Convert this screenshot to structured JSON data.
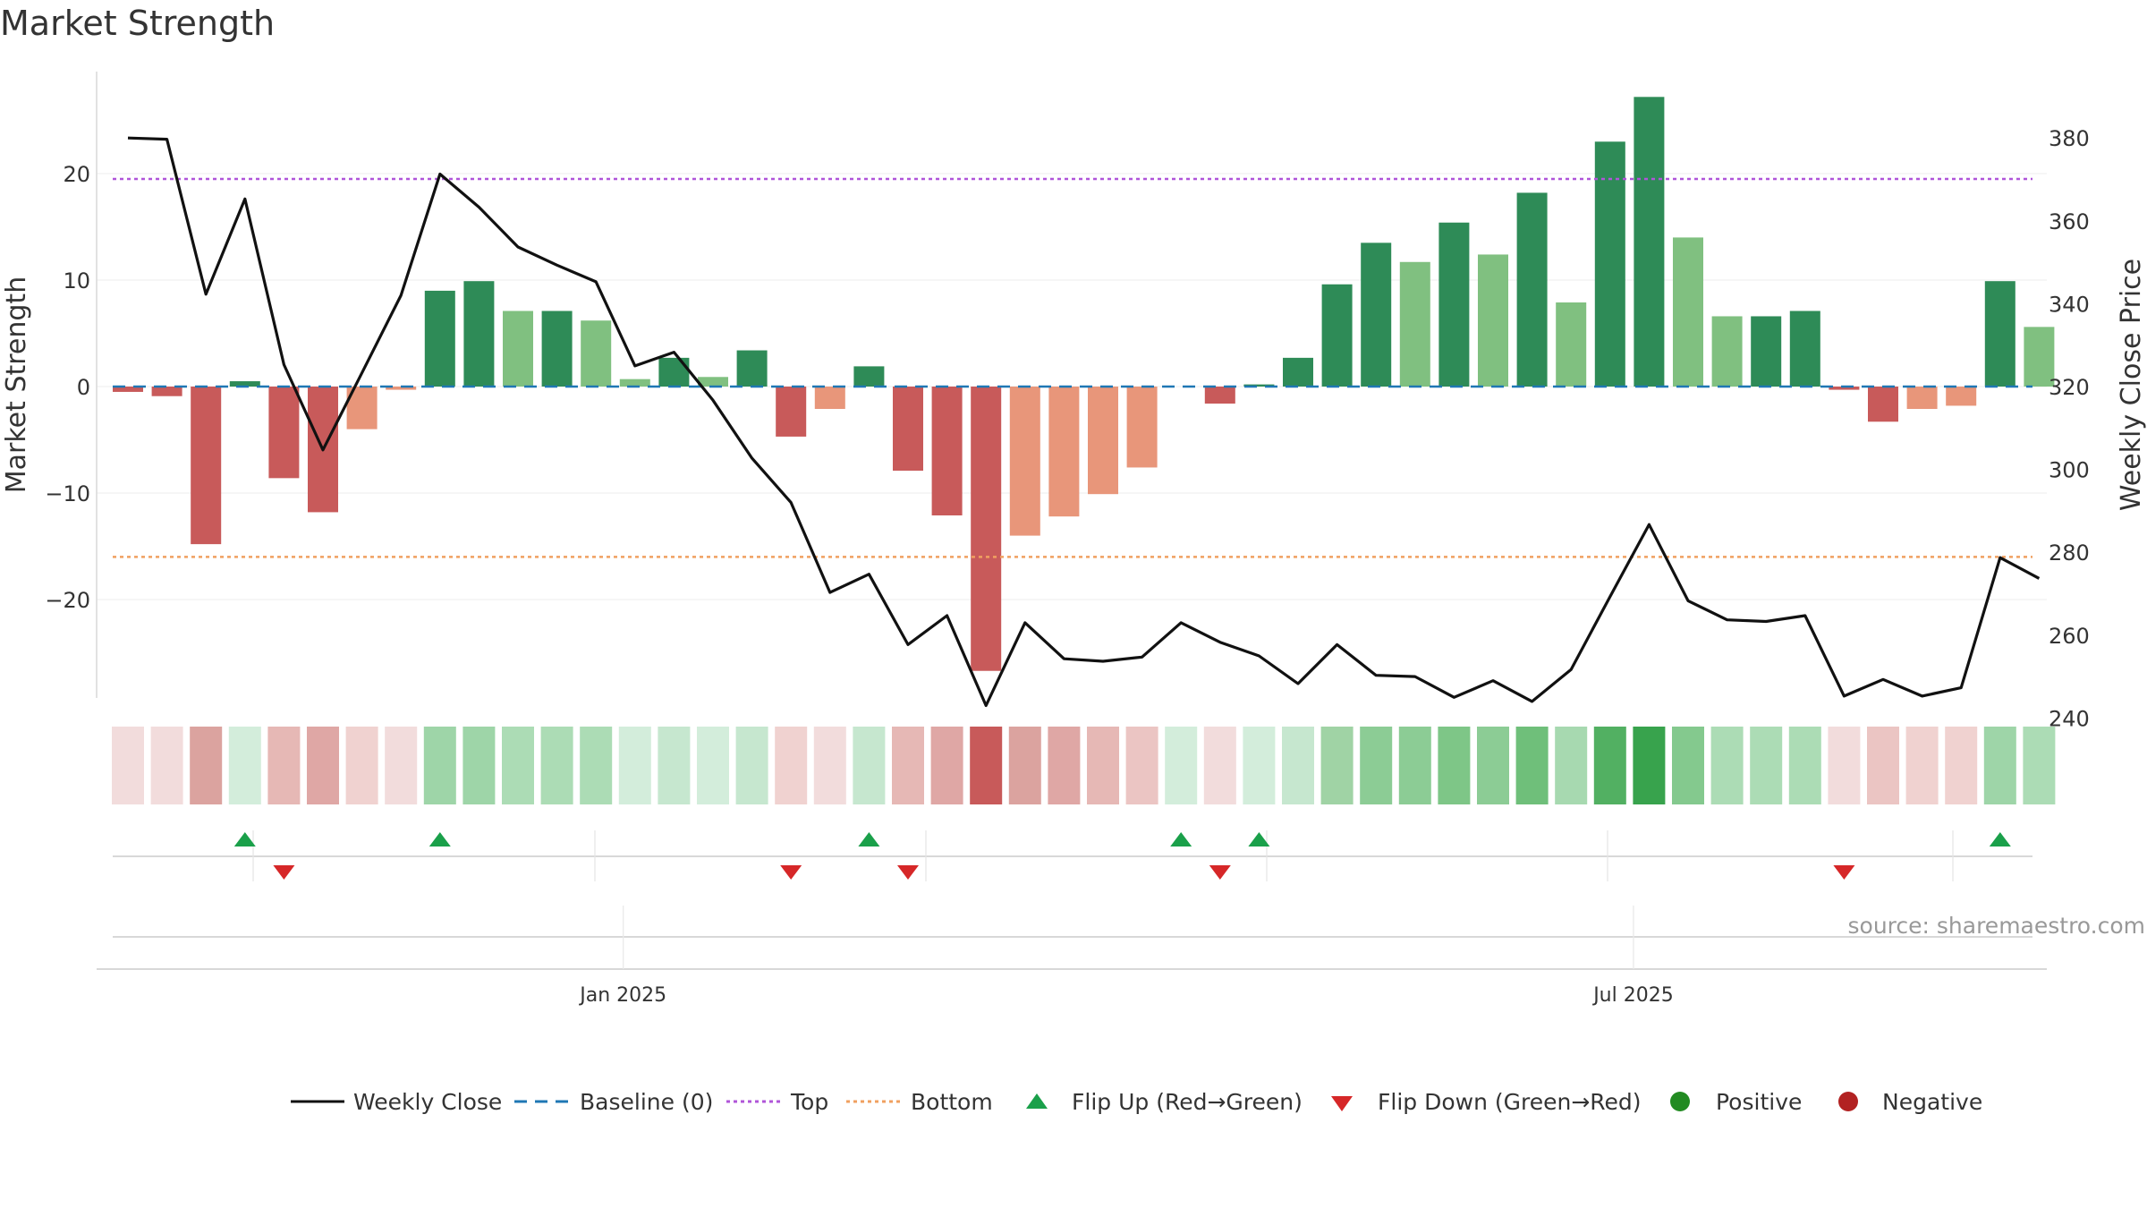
{
  "chart_data": {
    "type": "bar",
    "title": "Market Strength",
    "ylabel_left": "Market Strength",
    "ylabel_right": "Weekly Close Price",
    "ylim_left": [
      -29,
      29
    ],
    "ylim_right": [
      234,
      388
    ],
    "yticks_left": [
      20,
      10,
      0,
      -10,
      -20
    ],
    "yticks_left_labels": [
      "20",
      "10",
      "0",
      "−10",
      "−20"
    ],
    "yticks_right": [
      380,
      360,
      340,
      320,
      300,
      280,
      260,
      240
    ],
    "top_line": 19.5,
    "bottom_line": -16,
    "x_tick_labels": [
      {
        "label": "Jan 2025",
        "week_index": 12.7
      },
      {
        "label": "Jul 2025",
        "week_index": 38.6
      }
    ],
    "weeks": 50,
    "strength": [
      -0.5,
      -0.9,
      -14.8,
      0.5,
      -8.6,
      -11.8,
      -4,
      -0.3,
      9,
      9.9,
      7.1,
      7.1,
      6.2,
      0.7,
      2.7,
      0.9,
      3.4,
      -4.7,
      -2.1,
      1.9,
      -7.9,
      -12.1,
      -26.7,
      -14,
      -12.2,
      -10.1,
      -7.6,
      0,
      -1.6,
      0.2,
      2.7,
      9.6,
      13.5,
      11.7,
      15.4,
      12.4,
      18.2,
      7.9,
      23,
      27.2,
      14,
      6.6,
      6.6,
      7.1,
      -0.3,
      -3.3,
      -2.1,
      -1.8,
      9.9,
      5.6
    ],
    "bar_colors": [
      "#c85a5a",
      "#c85a5a",
      "#c85a5a",
      "#2e8b57",
      "#c85a5a",
      "#c85a5a",
      "#e8967a",
      "#e8967a",
      "#2e8b57",
      "#2e8b57",
      "#80c080",
      "#2e8b57",
      "#80c080",
      "#80c080",
      "#2e8b57",
      "#80c080",
      "#2e8b57",
      "#c85a5a",
      "#e8967a",
      "#2e8b57",
      "#c85a5a",
      "#c85a5a",
      "#c85a5a",
      "#e8967a",
      "#e8967a",
      "#e8967a",
      "#e8967a",
      "#e8967a",
      "#c85a5a",
      "#2e8b57",
      "#2e8b57",
      "#2e8b57",
      "#2e8b57",
      "#80c080",
      "#2e8b57",
      "#80c080",
      "#2e8b57",
      "#80c080",
      "#2e8b57",
      "#2e8b57",
      "#80c080",
      "#80c080",
      "#2e8b57",
      "#2e8b57",
      "#c85a5a",
      "#c85a5a",
      "#e8967a",
      "#e8967a",
      "#2e8b57",
      "#80c080"
    ],
    "weekly_close": [
      380,
      379.7,
      342.3,
      365.3,
      325.3,
      304.7,
      323.3,
      342,
      371.3,
      363.3,
      353.7,
      349.3,
      345.3,
      325,
      328.3,
      316.7,
      302.7,
      292,
      270.3,
      274.7,
      257.7,
      264.7,
      243,
      263,
      254.3,
      253.7,
      254.7,
      263,
      258.3,
      255,
      248.3,
      257.7,
      250.3,
      250,
      245,
      249,
      244,
      251.7,
      269.3,
      286.7,
      268.3,
      263.7,
      263.3,
      264.7,
      245.3,
      249.3,
      245.3,
      247.3,
      278.7,
      273.7
    ],
    "heat_colors": [
      "#f2dcdc",
      "#f2dcdc",
      "#dba39f",
      "#d3eddb",
      "#e6b8b5",
      "#dfa7a5",
      "#f0d2d0",
      "#f2dcdc",
      "#9ed5a8",
      "#9ed5a8",
      "#acdcb5",
      "#acdcb5",
      "#acdcb5",
      "#d3eddb",
      "#c6e7cf",
      "#d3eddb",
      "#c6e7cf",
      "#f0d2d0",
      "#f2dcdc",
      "#c6e7cf",
      "#e6b8b5",
      "#dfa7a5",
      "#c85a5a",
      "#dba39f",
      "#dfa7a5",
      "#e6b8b5",
      "#ebc5c3",
      "#d3eddb",
      "#f2dcdc",
      "#d3eddb",
      "#c6e7cf",
      "#a0d3a5",
      "#8ccc95",
      "#8ccc95",
      "#7ec687",
      "#8ccc95",
      "#6fbf7a",
      "#a7d9b0",
      "#52b062",
      "#38a34d",
      "#84c98e",
      "#acdcb5",
      "#acdcb5",
      "#acdcb5",
      "#f2dcdc",
      "#ebc5c3",
      "#f0d2d0",
      "#f0d2d0",
      "#9ed5a8",
      "#acdcb5"
    ],
    "flip_up_weeks": [
      3,
      8,
      19,
      27,
      29,
      48
    ],
    "flip_down_weeks": [
      4,
      17,
      20,
      28,
      44
    ],
    "colors": {
      "weekly_close": "#111111",
      "baseline": "#1f77b4",
      "top": "#b055d9",
      "bottom": "#f0a060",
      "flip_up": "#1aa04a",
      "flip_down": "#d62728",
      "positive": "#228b22",
      "negative": "#b22222"
    },
    "legend": {
      "placement": "bottom-center",
      "weekly_close": "Weekly Close",
      "baseline": "Baseline (0)",
      "top": "Top",
      "bottom": "Bottom",
      "flip_up": "Flip Up (Red→Green)",
      "flip_down": "Flip Down (Green→Red)",
      "positive": "Positive",
      "negative": "Negative"
    }
  },
  "source": "source: sharemaestro.com"
}
